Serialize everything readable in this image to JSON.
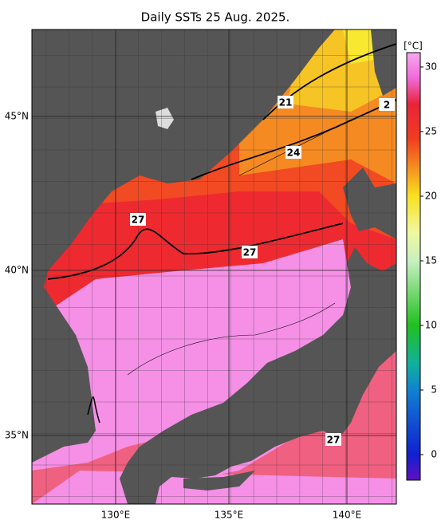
{
  "title": "Daily SSTs 25 Aug. 2025.",
  "lat_labels": [
    "45°N",
    "40°N",
    "35°N"
  ],
  "lon_labels": [
    "130°E",
    "135°E",
    "140°E"
  ],
  "colorbar": {
    "unit": "[°C]",
    "ticks": [
      30,
      25,
      20,
      15,
      10,
      5,
      0
    ]
  },
  "contour_labels": [
    21,
    24,
    27,
    27,
    27,
    "2"
  ]
}
